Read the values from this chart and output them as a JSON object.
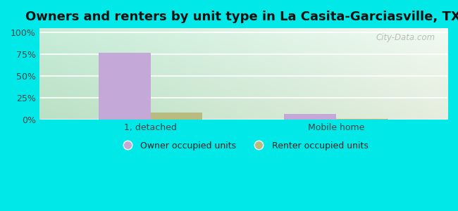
{
  "title": "Owners and renters by unit type in La Casita-Garciasville, TX",
  "categories": [
    "1, detached",
    "Mobile home"
  ],
  "owner_values": [
    77,
    7
  ],
  "renter_values": [
    8,
    1
  ],
  "owner_color": "#c4a8d8",
  "renter_color": "#b8bc80",
  "yticks": [
    0,
    25,
    50,
    75,
    100
  ],
  "ytick_labels": [
    "0%",
    "25%",
    "50%",
    "75%",
    "100%"
  ],
  "ylim": [
    0,
    105
  ],
  "bar_width": 0.28,
  "bg_color_topleft": "#c8ead8",
  "bg_color_topright": "#eaf5e8",
  "bg_color_bottomleft": "#c8ead8",
  "bg_color_bottomright": "#f0faf0",
  "outer_background": "#00e8e8",
  "legend_labels": [
    "Owner occupied units",
    "Renter occupied units"
  ],
  "title_fontsize": 13,
  "watermark_text": "City-Data.com"
}
